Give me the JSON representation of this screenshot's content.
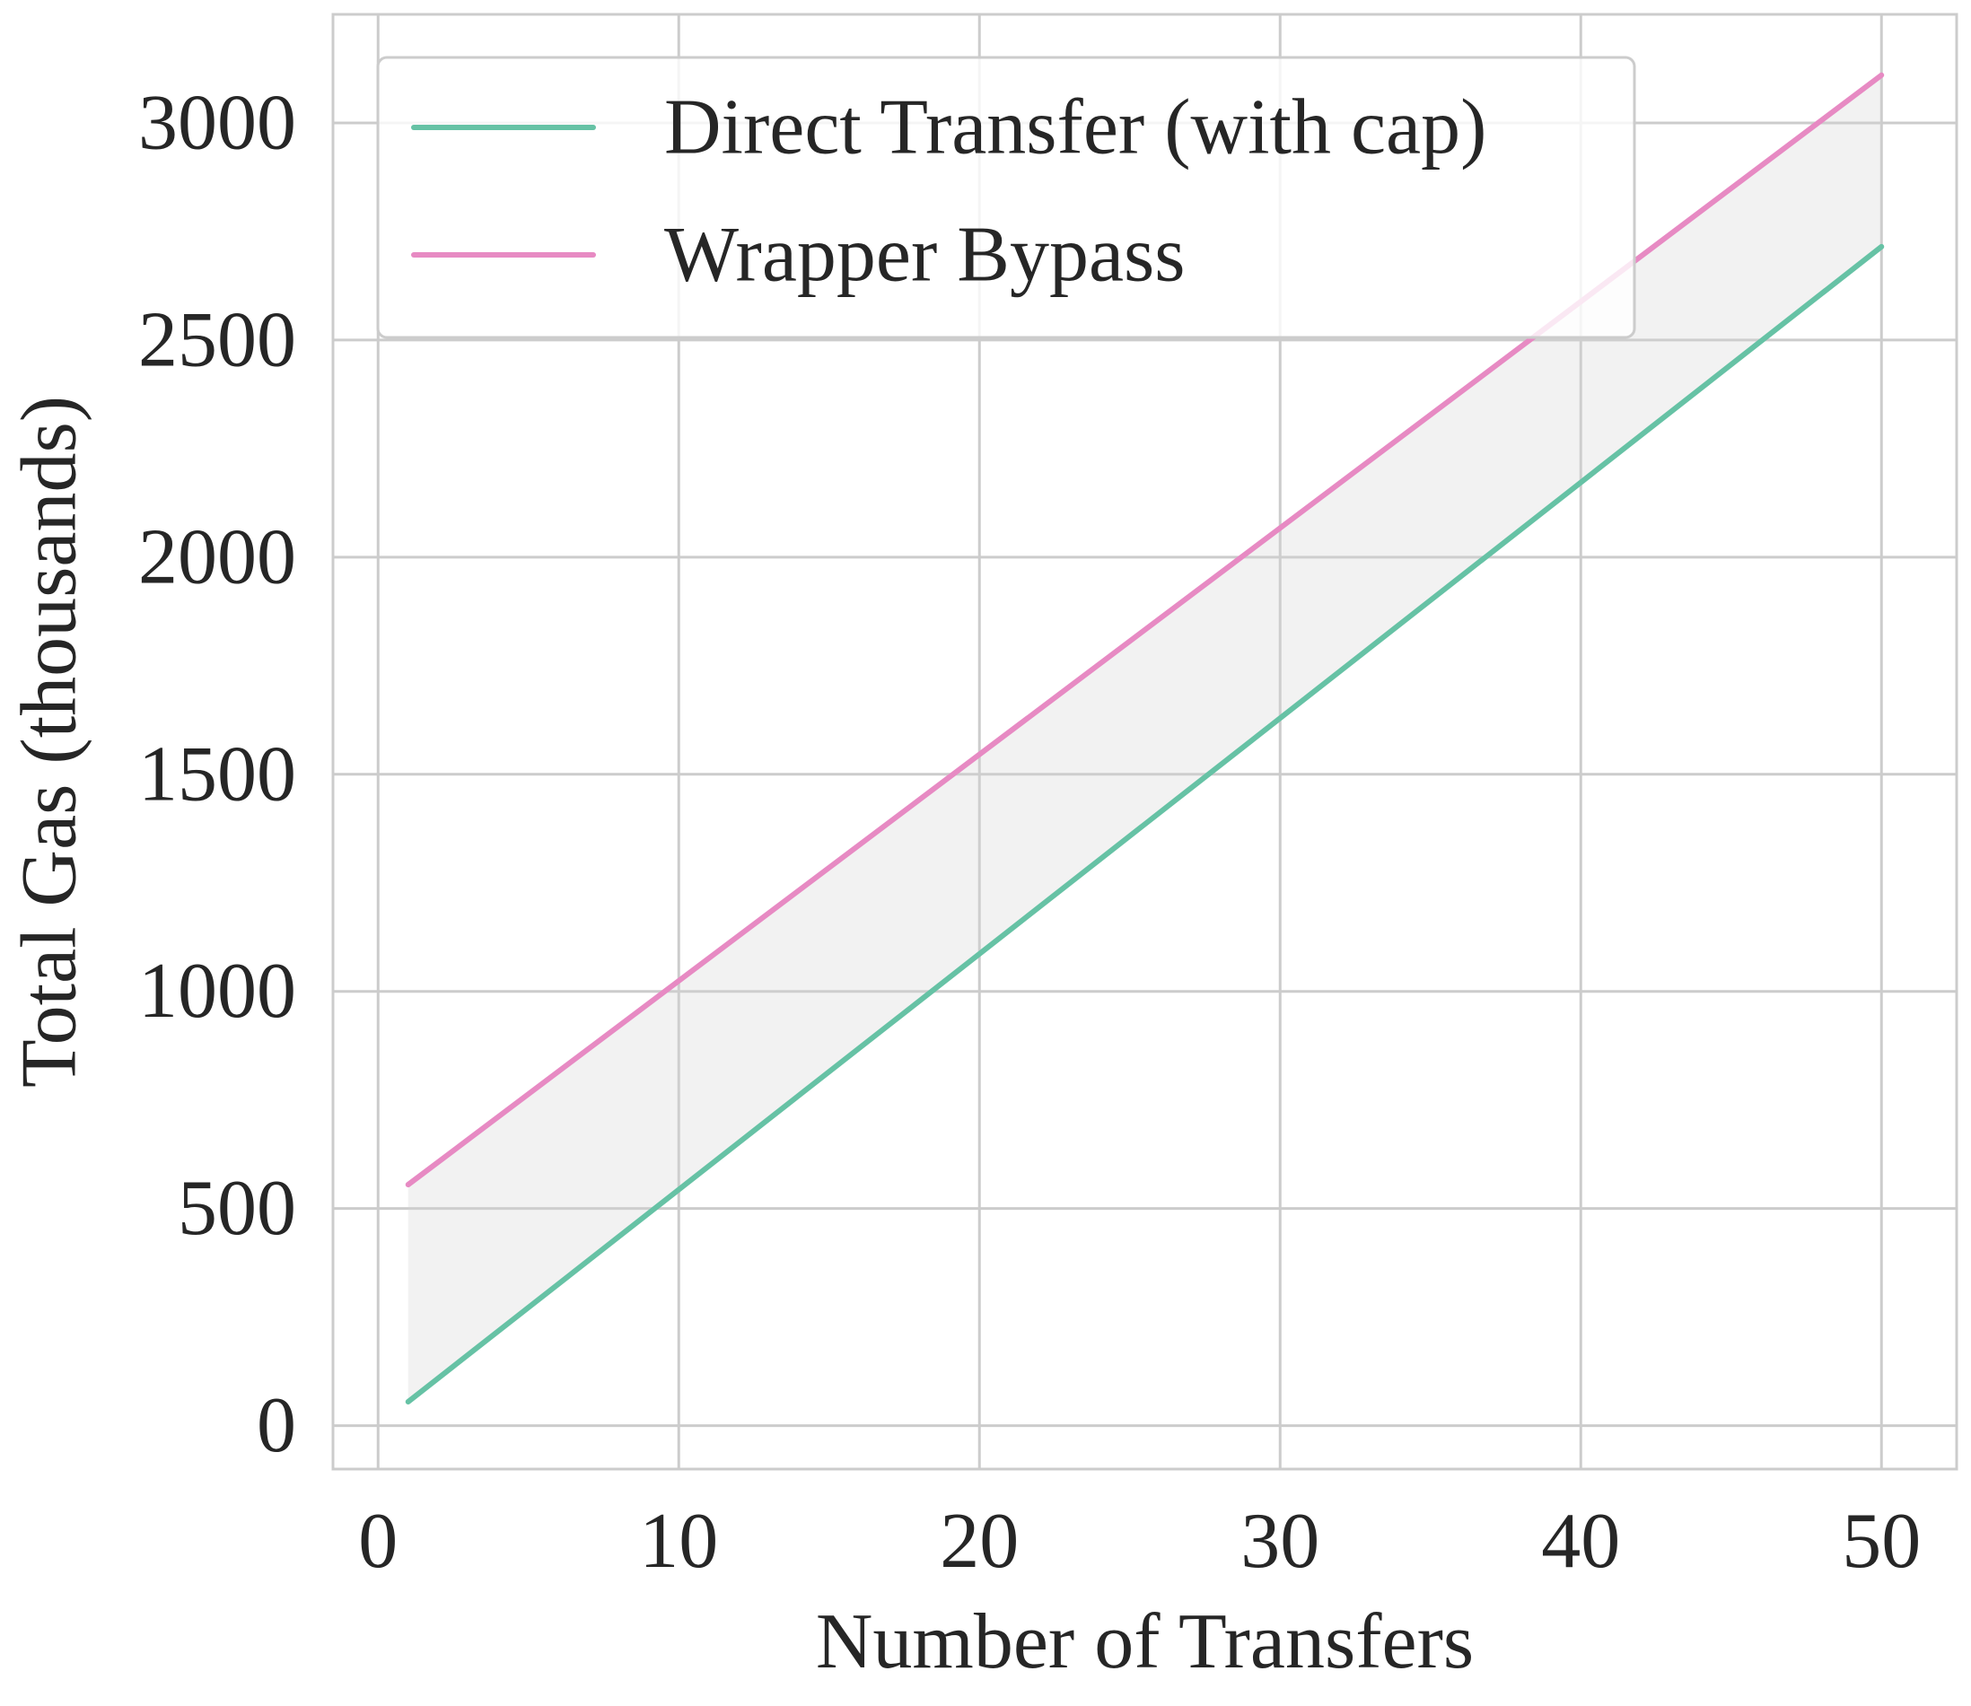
{
  "chart_data": {
    "type": "line",
    "title": "",
    "xlabel": "Number of Transfers",
    "ylabel": "Total Gas (thousands)",
    "xlim": [
      -1.5,
      52.5
    ],
    "ylim": [
      -100,
      3250
    ],
    "xticks": [
      0,
      10,
      20,
      30,
      40,
      50
    ],
    "yticks": [
      0,
      500,
      1000,
      1500,
      2000,
      2500,
      3000
    ],
    "grid": true,
    "legend_position": "top-left",
    "x": [
      1,
      50
    ],
    "series": [
      {
        "name": "Direct Transfer (with cap)",
        "color": "#66c2a5",
        "values": [
          55,
          2715
        ]
      },
      {
        "name": "Wrapper Bypass",
        "color": "#e78ac3",
        "values": [
          555,
          3110
        ]
      }
    ],
    "fill_between": {
      "color": "#d3d3d3",
      "opacity": 0.3
    }
  }
}
